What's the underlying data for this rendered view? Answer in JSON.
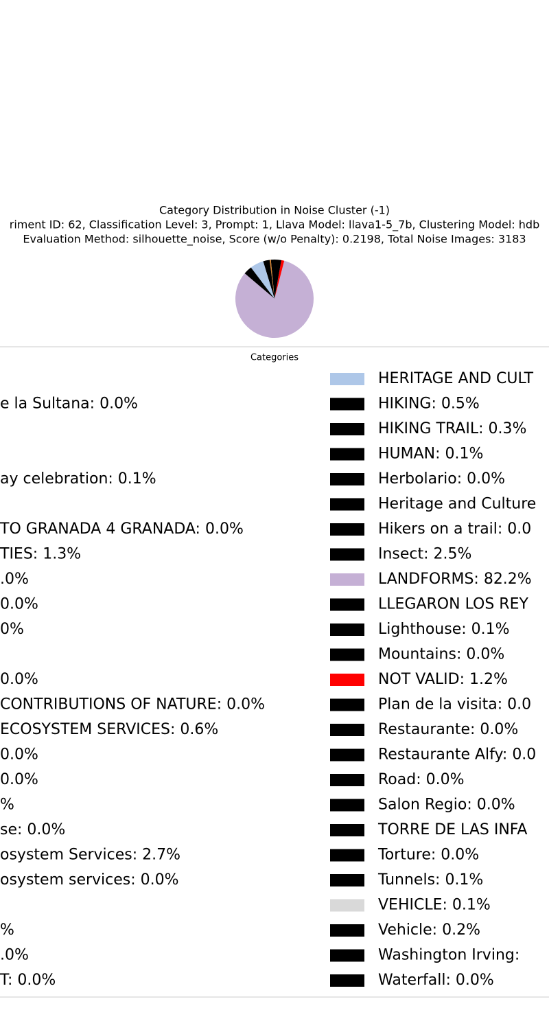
{
  "chart_data": {
    "type": "pie",
    "title": "Category Distribution in Noise Cluster (-1)",
    "subtitle": [
      "riment ID: 62, Classification Level: 3, Prompt: 1, Llava Model: llava1-5_7b, Clustering Model: hdb",
      "Evaluation Method: silhouette_noise, Score (w/o Penalty): 0.2198, Total Noise Images: 3183"
    ],
    "xlabel": "Categories",
    "values": [
      1.5,
      0.5,
      2.7,
      5.6,
      3.5,
      82.2,
      1.2,
      2.8
    ],
    "colors": [
      "#000000",
      "#d9822b",
      "#000000",
      "#aec7e8",
      "#000000",
      "#c5b0d5",
      "#ff0000",
      "#000000"
    ],
    "legend_left": [
      null,
      "e la Sultana: 0.0%",
      null,
      null,
      "ay celebration: 0.1%",
      null,
      "TO GRANADA 4 GRANADA: 0.0%",
      "TIES: 1.3%",
      ".0%",
      "0.0%",
      "0%",
      null,
      "0.0%",
      "CONTRIBUTIONS OF NATURE: 0.0%",
      "ECOSYSTEM SERVICES: 0.6%",
      "0.0%",
      "0.0%",
      "%",
      "se: 0.0%",
      "osystem Services: 2.7%",
      "osystem services: 0.0%",
      null,
      "%",
      ".0%",
      "T: 0.0%"
    ],
    "legend_right": [
      {
        "label": "HERITAGE AND CULT",
        "color": "#aec7e8"
      },
      {
        "label": "HIKING: 0.5%",
        "color": "#000000"
      },
      {
        "label": "HIKING TRAIL: 0.3%",
        "color": "#000000"
      },
      {
        "label": "HUMAN: 0.1%",
        "color": "#000000"
      },
      {
        "label": "Herbolario: 0.0%",
        "color": "#000000"
      },
      {
        "label": "Heritage and Culture",
        "color": "#000000"
      },
      {
        "label": "Hikers on a trail: 0.0",
        "color": "#000000"
      },
      {
        "label": "Insect: 2.5%",
        "color": "#000000"
      },
      {
        "label": "LANDFORMS: 82.2%",
        "color": "#c5b0d5"
      },
      {
        "label": "LLEGARON LOS REY",
        "color": "#000000"
      },
      {
        "label": "Lighthouse: 0.1%",
        "color": "#000000"
      },
      {
        "label": "Mountains: 0.0%",
        "color": "#000000"
      },
      {
        "label": "NOT VALID: 1.2%",
        "color": "#ff0000"
      },
      {
        "label": "Plan de la visita: 0.0",
        "color": "#000000"
      },
      {
        "label": "Restaurante: 0.0%",
        "color": "#000000"
      },
      {
        "label": "Restaurante Alfy: 0.0",
        "color": "#000000"
      },
      {
        "label": "Road: 0.0%",
        "color": "#000000"
      },
      {
        "label": "Salon Regio: 0.0%",
        "color": "#000000"
      },
      {
        "label": "TORRE DE LAS INFA",
        "color": "#000000"
      },
      {
        "label": "Torture: 0.0%",
        "color": "#000000"
      },
      {
        "label": "Tunnels: 0.1%",
        "color": "#000000"
      },
      {
        "label": "VEHICLE: 0.1%",
        "color": "#d9d9d9"
      },
      {
        "label": "Vehicle: 0.2%",
        "color": "#000000"
      },
      {
        "label": "Washington Irving:",
        "color": "#000000"
      },
      {
        "label": "Waterfall: 0.0%",
        "color": "#000000"
      }
    ]
  }
}
